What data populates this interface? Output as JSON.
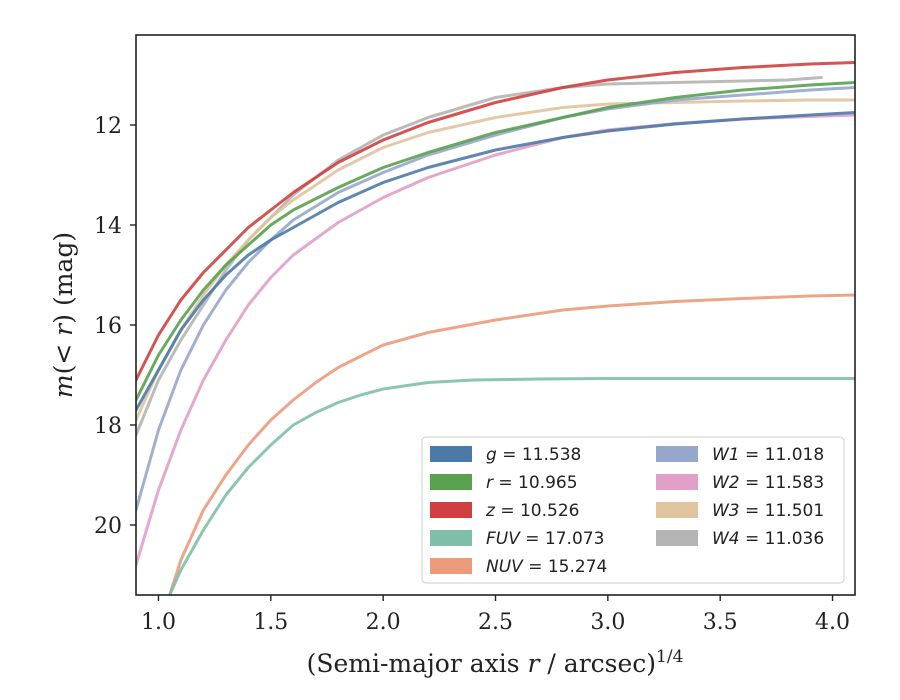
{
  "chart_data": {
    "type": "line",
    "xlabel_prefix": "(Semi-major axis ",
    "xlabel_var": "r",
    "xlabel_suffix": " / arcsec)",
    "xlabel_sup": "1/4",
    "ylabel_prefix": "m(< ",
    "ylabel_var": "r",
    "ylabel_suffix": ") (mag)",
    "xlim": [
      0.9,
      4.1
    ],
    "ylim": [
      21.4,
      10.2
    ],
    "y_inverted": true,
    "x_ticks": [
      1.0,
      1.5,
      2.0,
      2.5,
      3.0,
      3.5,
      4.0
    ],
    "x_tick_labels": [
      "1.0",
      "1.5",
      "2.0",
      "2.5",
      "3.0",
      "3.5",
      "4.0"
    ],
    "y_ticks": [
      12,
      14,
      16,
      18,
      20
    ],
    "y_tick_labels": [
      "12",
      "14",
      "16",
      "18",
      "20"
    ],
    "grid": false,
    "legend_position": "lower-right",
    "legend_columns": 2,
    "series": [
      {
        "name": "g",
        "value": "11.538",
        "color": "#4c7aa8",
        "x": [
          0.9,
          1.0,
          1.1,
          1.2,
          1.3,
          1.4,
          1.5,
          1.6,
          1.8,
          2.0,
          2.2,
          2.5,
          2.8,
          3.0,
          3.3,
          3.6,
          3.9,
          4.1
        ],
        "y": [
          17.7,
          16.9,
          16.1,
          15.5,
          15.0,
          14.6,
          14.3,
          14.05,
          13.55,
          13.15,
          12.85,
          12.5,
          12.25,
          12.12,
          11.98,
          11.88,
          11.8,
          11.75
        ]
      },
      {
        "name": "r",
        "value": "10.965",
        "color": "#59a14f",
        "x": [
          0.9,
          1.0,
          1.1,
          1.2,
          1.3,
          1.4,
          1.5,
          1.6,
          1.8,
          2.0,
          2.2,
          2.5,
          2.8,
          3.0,
          3.3,
          3.6,
          3.9,
          4.1
        ],
        "y": [
          17.5,
          16.6,
          15.9,
          15.3,
          14.8,
          14.4,
          14.0,
          13.7,
          13.25,
          12.85,
          12.55,
          12.15,
          11.85,
          11.65,
          11.45,
          11.3,
          11.2,
          11.15
        ]
      },
      {
        "name": "z",
        "value": "10.526",
        "color": "#d04040",
        "x": [
          0.9,
          1.0,
          1.1,
          1.2,
          1.3,
          1.4,
          1.5,
          1.6,
          1.8,
          2.0,
          2.2,
          2.5,
          2.8,
          3.0,
          3.3,
          3.6,
          3.9,
          4.1
        ],
        "y": [
          17.1,
          16.2,
          15.5,
          14.95,
          14.5,
          14.05,
          13.7,
          13.35,
          12.75,
          12.3,
          11.95,
          11.55,
          11.25,
          11.1,
          10.95,
          10.85,
          10.78,
          10.75
        ]
      },
      {
        "name": "FUV",
        "value": "17.073",
        "color": "#7fbfa9",
        "x": [
          1.05,
          1.1,
          1.2,
          1.3,
          1.4,
          1.5,
          1.6,
          1.7,
          1.8,
          1.9,
          2.0,
          2.2,
          2.4,
          2.7,
          3.0,
          3.5,
          4.1
        ],
        "y": [
          21.4,
          20.9,
          20.1,
          19.4,
          18.85,
          18.4,
          18.0,
          17.75,
          17.55,
          17.4,
          17.28,
          17.15,
          17.1,
          17.08,
          17.07,
          17.07,
          17.07
        ]
      },
      {
        "name": "NUV",
        "value": "15.274",
        "color": "#ec9a7c",
        "x": [
          1.05,
          1.1,
          1.2,
          1.3,
          1.4,
          1.5,
          1.6,
          1.7,
          1.8,
          2.0,
          2.2,
          2.5,
          2.8,
          3.0,
          3.3,
          3.6,
          3.9,
          4.1
        ],
        "y": [
          21.4,
          20.7,
          19.7,
          19.0,
          18.4,
          17.9,
          17.5,
          17.15,
          16.85,
          16.4,
          16.15,
          15.9,
          15.7,
          15.62,
          15.53,
          15.47,
          15.42,
          15.4
        ]
      },
      {
        "name": "W1",
        "value": "11.018",
        "color": "#97a7cc",
        "x": [
          0.9,
          1.0,
          1.1,
          1.2,
          1.3,
          1.4,
          1.5,
          1.6,
          1.8,
          2.0,
          2.2,
          2.5,
          2.8,
          3.0,
          3.3,
          3.6,
          3.9,
          4.1
        ],
        "y": [
          19.7,
          18.1,
          16.9,
          16.0,
          15.3,
          14.75,
          14.3,
          13.9,
          13.35,
          12.95,
          12.6,
          12.2,
          11.85,
          11.68,
          11.5,
          11.4,
          11.3,
          11.25
        ]
      },
      {
        "name": "W2",
        "value": "11.583",
        "color": "#e29fc8",
        "x": [
          0.9,
          1.0,
          1.1,
          1.2,
          1.3,
          1.4,
          1.5,
          1.6,
          1.8,
          2.0,
          2.2,
          2.5,
          2.8,
          3.0,
          3.3,
          3.6,
          3.9,
          4.1
        ],
        "y": [
          20.8,
          19.3,
          18.1,
          17.1,
          16.3,
          15.6,
          15.05,
          14.6,
          13.95,
          13.45,
          13.05,
          12.6,
          12.25,
          12.1,
          11.97,
          11.88,
          11.83,
          11.8
        ]
      },
      {
        "name": "W3",
        "value": "11.501",
        "color": "#dfc49e",
        "x": [
          0.9,
          1.0,
          1.1,
          1.2,
          1.3,
          1.4,
          1.5,
          1.6,
          1.8,
          2.0,
          2.2,
          2.5,
          2.8,
          3.0,
          3.3,
          3.6,
          3.9,
          4.1
        ],
        "y": [
          17.9,
          16.9,
          16.1,
          15.4,
          14.8,
          14.3,
          13.85,
          13.5,
          12.9,
          12.45,
          12.15,
          11.85,
          11.65,
          11.58,
          11.55,
          11.52,
          11.5,
          11.5
        ]
      },
      {
        "name": "W4",
        "value": "11.036",
        "color": "#b4b4b4",
        "x": [
          0.9,
          1.0,
          1.1,
          1.2,
          1.3,
          1.4,
          1.5,
          1.6,
          1.8,
          2.0,
          2.2,
          2.5,
          2.8,
          3.0,
          3.3,
          3.6,
          3.8,
          3.95
        ],
        "y": [
          18.2,
          17.1,
          16.3,
          15.6,
          14.9,
          14.3,
          13.85,
          13.4,
          12.7,
          12.2,
          11.85,
          11.45,
          11.25,
          11.18,
          11.15,
          11.12,
          11.1,
          11.05
        ]
      }
    ]
  }
}
